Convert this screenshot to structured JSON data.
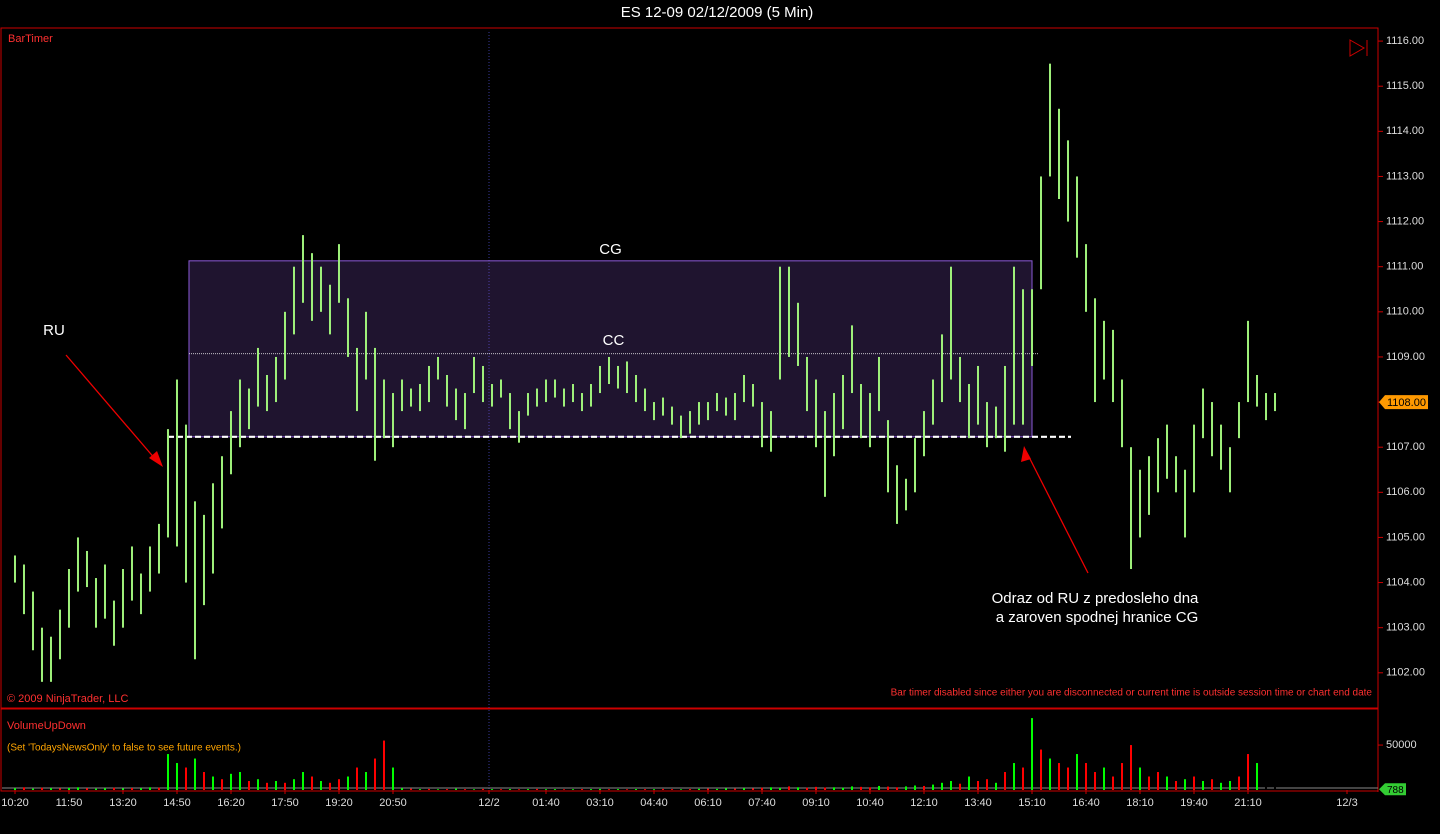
{
  "chart_data": [
    {
      "type": "hlbar",
      "title": "ES 12-09  02/12/2009 (5 Min)",
      "indicator": "BarTimer",
      "copyright": "© 2009 NinjaTrader, LLC",
      "message": "Bar timer disabled since either you are disconnected or current time is outside session time or chart end date",
      "color": "#9ef07a",
      "axis_color": "#cc0000",
      "xlim": [
        -4.33,
        454.33
      ],
      "xticks": [
        {
          "value": 0,
          "label": "10:20"
        },
        {
          "value": 18,
          "label": "11:50"
        },
        {
          "value": 36,
          "label": "13:20"
        },
        {
          "value": 54,
          "label": "14:50"
        },
        {
          "value": 72,
          "label": "16:20"
        },
        {
          "value": 90,
          "label": "17:50"
        },
        {
          "value": 108,
          "label": "19:20"
        },
        {
          "value": 126,
          "label": "20:50"
        },
        {
          "value": 158,
          "label": "12/2"
        },
        {
          "value": 177,
          "label": "01:40"
        },
        {
          "value": 195,
          "label": "03:10"
        },
        {
          "value": 213,
          "label": "04:40"
        },
        {
          "value": 231,
          "label": "06:10"
        },
        {
          "value": 249,
          "label": "07:40"
        },
        {
          "value": 267,
          "label": "09:10"
        },
        {
          "value": 285,
          "label": "10:40"
        },
        {
          "value": 303,
          "label": "12:10"
        },
        {
          "value": 321,
          "label": "13:40"
        },
        {
          "value": 339,
          "label": "15:10"
        },
        {
          "value": 357,
          "label": "16:40"
        },
        {
          "value": 375,
          "label": "18:10"
        },
        {
          "value": 393,
          "label": "19:40"
        },
        {
          "value": 411,
          "label": "21:10"
        },
        {
          "value": 444,
          "label": "12/3"
        }
      ],
      "ylim": [
        1101.22,
        1116.29
      ],
      "yticks": [
        {
          "value": 1102,
          "label": "1102.00"
        },
        {
          "value": 1103,
          "label": "1103.00"
        },
        {
          "value": 1104,
          "label": "1104.00"
        },
        {
          "value": 1105,
          "label": "1105.00"
        },
        {
          "value": 1106,
          "label": "1106.00"
        },
        {
          "value": 1107,
          "label": "1107.00"
        },
        {
          "value": 1108,
          "label": "1108.00"
        },
        {
          "value": 1109,
          "label": "1109.00"
        },
        {
          "value": 1110,
          "label": "1110.00"
        },
        {
          "value": 1111,
          "label": "1111.00"
        },
        {
          "value": 1112,
          "label": "1112.00"
        },
        {
          "value": 1113,
          "label": "1113.00"
        },
        {
          "value": 1114,
          "label": "1114.00"
        },
        {
          "value": 1115,
          "label": "1115.00"
        },
        {
          "value": 1116,
          "label": "1116.00"
        }
      ],
      "last_price": {
        "value": 1108,
        "label": "1108.00"
      },
      "x": [
        0,
        3,
        6,
        9,
        12,
        15,
        18,
        21,
        24,
        27,
        30,
        33,
        36,
        39,
        42,
        45,
        48,
        51,
        54,
        57,
        60,
        63,
        66,
        69,
        72,
        75,
        78,
        81,
        84,
        87,
        90,
        93,
        96,
        99,
        102,
        105,
        108,
        111,
        114,
        117,
        120,
        123,
        126,
        129,
        132,
        135,
        138,
        141,
        144,
        147,
        150,
        153,
        156,
        159,
        162,
        165,
        168,
        171,
        174,
        177,
        180,
        183,
        186,
        189,
        192,
        195,
        198,
        201,
        204,
        207,
        210,
        213,
        216,
        219,
        222,
        225,
        228,
        231,
        234,
        237,
        240,
        243,
        246,
        249,
        252,
        255,
        258,
        261,
        264,
        267,
        270,
        273,
        276,
        279,
        282,
        285,
        288,
        291,
        294,
        297,
        300,
        303,
        306,
        309,
        312,
        315,
        318,
        321,
        324,
        327,
        330,
        333,
        336,
        339,
        342,
        345,
        348,
        351,
        354,
        357,
        360,
        363,
        366,
        369,
        372,
        375,
        378,
        381,
        384,
        387,
        390,
        393,
        396,
        399,
        402,
        405,
        408,
        411,
        414,
        417,
        420
      ],
      "high": [
        1104.6,
        1104.4,
        1103.8,
        1103.0,
        1102.8,
        1103.4,
        1104.3,
        1105.0,
        1104.7,
        1104.1,
        1104.4,
        1103.6,
        1104.3,
        1104.8,
        1104.2,
        1104.8,
        1105.3,
        1107.4,
        1108.5,
        1107.5,
        1105.8,
        1105.5,
        1106.2,
        1106.8,
        1107.8,
        1108.5,
        1108.3,
        1109.2,
        1108.6,
        1109.0,
        1110.0,
        1111.0,
        1111.7,
        1111.3,
        1111.0,
        1110.6,
        1111.5,
        1110.3,
        1109.2,
        1110.0,
        1109.2,
        1108.5,
        1108.2,
        1108.5,
        1108.3,
        1108.4,
        1108.8,
        1109.0,
        1108.6,
        1108.3,
        1108.2,
        1109.0,
        1108.8,
        1108.4,
        1108.5,
        1108.2,
        1107.8,
        1108.2,
        1108.3,
        1108.5,
        1108.5,
        1108.3,
        1108.4,
        1108.2,
        1108.4,
        1108.8,
        1109.0,
        1108.8,
        1108.9,
        1108.6,
        1108.3,
        1108.0,
        1108.1,
        1107.9,
        1107.7,
        1107.8,
        1108.0,
        1108.0,
        1108.2,
        1108.1,
        1108.2,
        1108.6,
        1108.4,
        1108.0,
        1107.8,
        1111.0,
        1111.0,
        1110.2,
        1109.0,
        1108.5,
        1107.8,
        1108.2,
        1108.6,
        1109.7,
        1108.4,
        1108.2,
        1109.0,
        1107.6,
        1106.6,
        1106.3,
        1107.2,
        1107.8,
        1108.5,
        1109.5,
        1111.0,
        1109.0,
        1108.4,
        1108.8,
        1108.0,
        1107.9,
        1108.8,
        1111.0,
        1110.5,
        1110.5,
        1113.0,
        1115.5,
        1114.5,
        1113.8,
        1113.0,
        1111.5,
        1110.3,
        1109.8,
        1109.6,
        1108.5,
        1107.0,
        1106.5,
        1106.8,
        1107.2,
        1107.5,
        1106.8,
        1106.5,
        1107.5,
        1108.3,
        1108.0,
        1107.5,
        1107.0,
        1108.0,
        1109.8,
        1108.6,
        1108.2,
        1108.2
      ],
      "low": [
        1104.0,
        1103.3,
        1102.5,
        1101.8,
        1101.8,
        1102.3,
        1103.0,
        1103.8,
        1103.9,
        1103.0,
        1103.2,
        1102.6,
        1103.0,
        1103.6,
        1103.3,
        1103.8,
        1104.2,
        1105.0,
        1104.8,
        1104.0,
        1102.3,
        1103.5,
        1104.2,
        1105.2,
        1106.4,
        1107.0,
        1107.4,
        1107.9,
        1107.8,
        1108.0,
        1108.5,
        1109.5,
        1110.2,
        1109.8,
        1110.0,
        1109.5,
        1110.2,
        1109.0,
        1107.8,
        1108.5,
        1106.7,
        1107.2,
        1107.0,
        1107.8,
        1107.9,
        1107.8,
        1108.0,
        1108.5,
        1107.9,
        1107.6,
        1107.4,
        1108.2,
        1108.0,
        1107.9,
        1108.1,
        1107.4,
        1107.1,
        1107.7,
        1107.9,
        1108.0,
        1108.1,
        1107.9,
        1108.0,
        1107.8,
        1107.9,
        1108.2,
        1108.4,
        1108.3,
        1108.2,
        1108.0,
        1107.8,
        1107.6,
        1107.7,
        1107.5,
        1107.2,
        1107.3,
        1107.5,
        1107.6,
        1107.8,
        1107.7,
        1107.6,
        1108.0,
        1107.9,
        1107.0,
        1106.9,
        1108.5,
        1109.0,
        1108.8,
        1107.8,
        1107.0,
        1105.9,
        1106.8,
        1107.4,
        1108.2,
        1107.2,
        1107.0,
        1107.8,
        1106.0,
        1105.3,
        1105.6,
        1106.0,
        1106.8,
        1107.5,
        1108.0,
        1108.5,
        1108.0,
        1107.2,
        1107.5,
        1107.0,
        1107.2,
        1106.9,
        1107.5,
        1107.5,
        1108.8,
        1110.5,
        1113.0,
        1112.5,
        1112.0,
        1111.2,
        1110.0,
        1108.0,
        1108.5,
        1108.0,
        1107.0,
        1104.3,
        1105.0,
        1105.5,
        1106.0,
        1106.3,
        1106.0,
        1105.0,
        1106.0,
        1107.2,
        1106.8,
        1106.5,
        1106.0,
        1107.2,
        1108.0,
        1107.9,
        1107.6,
        1107.8
      ],
      "annotations": [
        {
          "kind": "box",
          "label": "CG",
          "top": 1111.13,
          "bottom": 1107.23,
          "x": [
            58,
            339
          ],
          "color": "#8c5ad8"
        },
        {
          "kind": "line",
          "label": "CC",
          "value": 1109.07,
          "x": [
            58,
            341
          ],
          "color": "#ffffff"
        },
        {
          "kind": "dashed-line",
          "value": 1107.23,
          "x": [
            51,
            352
          ],
          "color": "#ffffff"
        }
      ],
      "notes": [
        "RU",
        "Odraz od RU z predosleho dna",
        "a zaroven spodnej hranice CG"
      ]
    },
    {
      "type": "bar",
      "title": "VolumeUpDown",
      "message": "(Set 'TodaysNewsOnly' to false to see future events.)",
      "ylim": [
        0,
        89000
      ],
      "yticks": [
        50000
      ],
      "last_value": 788,
      "values": [
        2000,
        3000,
        1500,
        2500,
        2000,
        1800,
        2200,
        3000,
        2000,
        1500,
        2000,
        2500,
        1800,
        2200,
        2000,
        3000,
        2500,
        40000,
        30000,
        25000,
        35000,
        20000,
        15000,
        12000,
        18000,
        20000,
        10000,
        12000,
        8000,
        10000,
        8000,
        12000,
        20000,
        15000,
        10000,
        8000,
        12000,
        15000,
        25000,
        20000,
        35000,
        55000,
        25000,
        2000,
        1500,
        1000,
        1200,
        800,
        1000,
        1500,
        1000,
        800,
        1200,
        1000,
        900,
        1100,
        800,
        1000,
        1200,
        900,
        1000,
        800,
        900,
        1100,
        1000,
        1200,
        900,
        1000,
        800,
        1100,
        1000,
        900,
        1200,
        1000,
        800,
        1100,
        1300,
        1500,
        1200,
        1800,
        1500,
        2000,
        1800,
        2500,
        3000,
        2200,
        4000,
        3000,
        2500,
        3500,
        2800,
        3000,
        2500,
        4000,
        3500,
        3000,
        4500,
        3800,
        3000,
        4000,
        5000,
        4500,
        6000,
        8000,
        10000,
        7000,
        15000,
        10000,
        12000,
        8000,
        20000,
        30000,
        25000,
        80000,
        45000,
        35000,
        30000,
        25000,
        40000,
        30000,
        20000,
        25000,
        15000,
        30000,
        50000,
        25000,
        15000,
        20000,
        15000,
        10000,
        12000,
        15000,
        10000,
        12000,
        8000,
        10000,
        15000,
        40000,
        30000,
        20000,
        10000
      ],
      "colors": [
        "lime",
        "red",
        "lime",
        "red",
        "lime",
        "red",
        "lime",
        "lime",
        "red",
        "lime",
        "lime",
        "red",
        "lime",
        "red",
        "lime",
        "lime",
        "red",
        "lime",
        "lime",
        "red",
        "lime",
        "red",
        "lime",
        "red",
        "lime",
        "lime",
        "red",
        "lime",
        "red",
        "lime",
        "red",
        "lime",
        "lime",
        "red",
        "lime",
        "red",
        "red",
        "lime",
        "red",
        "lime",
        "red",
        "red",
        "lime",
        "lime",
        "red",
        "lime",
        "red",
        "lime",
        "red",
        "lime",
        "red",
        "lime",
        "red",
        "lime",
        "red",
        "lime",
        "red",
        "lime",
        "red",
        "lime",
        "lime",
        "red",
        "lime",
        "red",
        "lime",
        "lime",
        "red",
        "lime",
        "red",
        "lime",
        "red",
        "lime",
        "red",
        "red",
        "lime",
        "red",
        "lime",
        "red",
        "lime",
        "lime",
        "red",
        "lime",
        "red",
        "red",
        "lime",
        "lime",
        "red",
        "lime",
        "red",
        "red",
        "red",
        "lime",
        "lime",
        "lime",
        "red",
        "red",
        "lime",
        "red",
        "red",
        "lime",
        "lime",
        "red",
        "lime",
        "lime",
        "lime",
        "red",
        "lime",
        "red",
        "red",
        "lime",
        "red",
        "lime",
        "red",
        "lime",
        "red",
        "lime",
        "red",
        "red",
        "lime",
        "red",
        "red",
        "lime",
        "red",
        "red",
        "red",
        "lime",
        "red",
        "red",
        "lime",
        "red",
        "lime",
        "red",
        "lime",
        "red",
        "lime",
        "lime",
        "red",
        "red",
        "lime"
      ]
    }
  ]
}
